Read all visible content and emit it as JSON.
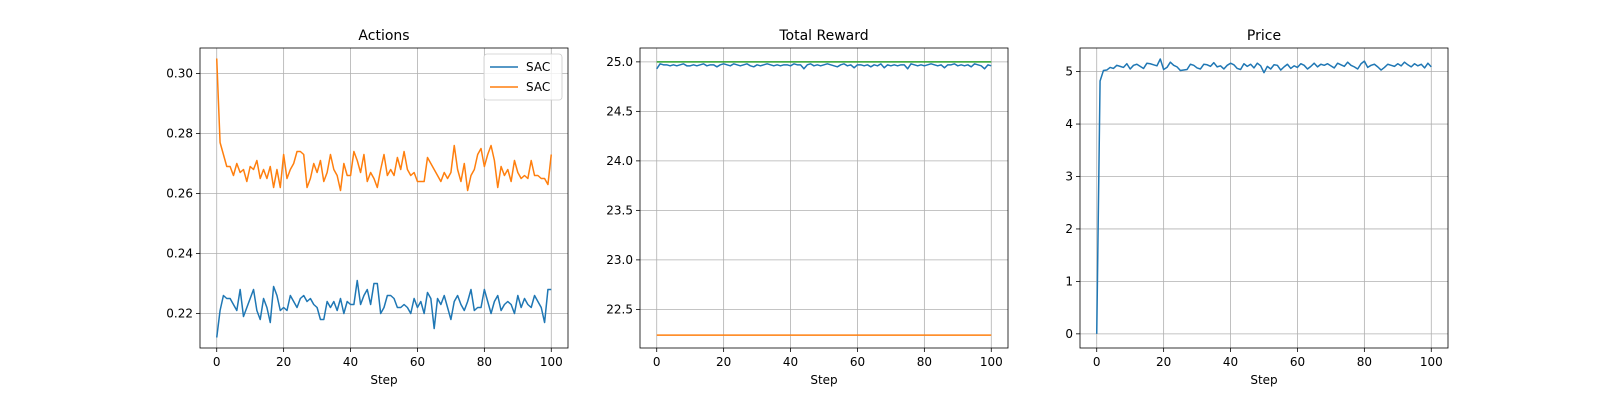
{
  "chart_data": [
    {
      "type": "line",
      "title": "Actions",
      "xlabel": "Step",
      "ylabel": "",
      "xlim": [
        -5,
        105
      ],
      "ylim": [
        0.2085,
        0.3085
      ],
      "xticks": [
        0,
        20,
        40,
        60,
        80,
        100
      ],
      "xtick_labels": [
        "0",
        "20",
        "40",
        "60",
        "80",
        "100"
      ],
      "yticks": [
        0.22,
        0.24,
        0.26,
        0.28,
        0.3
      ],
      "ytick_labels": [
        "0.22",
        "0.24",
        "0.26",
        "0.28",
        "0.30"
      ],
      "grid": true,
      "legend": "top-right",
      "series": [
        {
          "name": "SAC",
          "color": "#1f77b4",
          "values": [
            0.212,
            0.221,
            0.226,
            0.225,
            0.225,
            0.223,
            0.221,
            0.228,
            0.219,
            0.222,
            0.225,
            0.228,
            0.221,
            0.218,
            0.225,
            0.222,
            0.217,
            0.229,
            0.226,
            0.221,
            0.222,
            0.221,
            0.226,
            0.224,
            0.222,
            0.225,
            0.226,
            0.224,
            0.225,
            0.223,
            0.222,
            0.218,
            0.218,
            0.224,
            0.222,
            0.224,
            0.221,
            0.225,
            0.22,
            0.224,
            0.223,
            0.223,
            0.231,
            0.223,
            0.226,
            0.228,
            0.223,
            0.23,
            0.23,
            0.22,
            0.222,
            0.226,
            0.226,
            0.225,
            0.222,
            0.222,
            0.223,
            0.222,
            0.22,
            0.225,
            0.222,
            0.224,
            0.22,
            0.227,
            0.225,
            0.215,
            0.225,
            0.223,
            0.226,
            0.222,
            0.218,
            0.224,
            0.226,
            0.223,
            0.221,
            0.224,
            0.228,
            0.221,
            0.222,
            0.222,
            0.228,
            0.224,
            0.22,
            0.224,
            0.226,
            0.221,
            0.223,
            0.224,
            0.223,
            0.22,
            0.226,
            0.222,
            0.225,
            0.223,
            0.222,
            0.226,
            0.224,
            0.222,
            0.217,
            0.228,
            0.228
          ],
          "note": "step values 0..100"
        },
        {
          "name": "SAC",
          "color": "#ff7f0e",
          "values": [
            0.305,
            0.277,
            0.273,
            0.269,
            0.269,
            0.266,
            0.27,
            0.267,
            0.268,
            0.264,
            0.269,
            0.268,
            0.271,
            0.265,
            0.268,
            0.265,
            0.269,
            0.262,
            0.268,
            0.262,
            0.273,
            0.265,
            0.268,
            0.27,
            0.274,
            0.274,
            0.273,
            0.262,
            0.265,
            0.27,
            0.267,
            0.271,
            0.264,
            0.267,
            0.273,
            0.268,
            0.266,
            0.261,
            0.27,
            0.266,
            0.266,
            0.274,
            0.271,
            0.267,
            0.273,
            0.264,
            0.267,
            0.265,
            0.262,
            0.268,
            0.273,
            0.266,
            0.268,
            0.266,
            0.272,
            0.268,
            0.274,
            0.268,
            0.266,
            0.267,
            0.264,
            0.264,
            0.264,
            0.272,
            0.27,
            0.268,
            0.266,
            0.264,
            0.267,
            0.265,
            0.267,
            0.276,
            0.268,
            0.264,
            0.27,
            0.261,
            0.266,
            0.268,
            0.273,
            0.275,
            0.269,
            0.273,
            0.276,
            0.271,
            0.262,
            0.269,
            0.266,
            0.268,
            0.264,
            0.271,
            0.267,
            0.265,
            0.266,
            0.265,
            0.271,
            0.266,
            0.266,
            0.265,
            0.265,
            0.263,
            0.273
          ]
        }
      ]
    },
    {
      "type": "line",
      "title": "Total Reward",
      "xlabel": "Step",
      "ylabel": "",
      "xlim": [
        -5,
        105
      ],
      "ylim": [
        22.11,
        25.14
      ],
      "xticks": [
        0,
        20,
        40,
        60,
        80,
        100
      ],
      "xtick_labels": [
        "0",
        "20",
        "40",
        "60",
        "80",
        "100"
      ],
      "yticks": [
        22.5,
        23.0,
        23.5,
        24.0,
        24.5,
        25.0
      ],
      "ytick_labels": [
        "22.5",
        "23.0",
        "23.5",
        "24.0",
        "24.5",
        "25.0"
      ],
      "grid": true,
      "legend": "",
      "series": [
        {
          "color": "#1f77b4",
          "values": [
            24.93,
            24.98,
            24.97,
            24.97,
            24.96,
            24.97,
            24.96,
            24.97,
            24.98,
            24.96,
            24.96,
            24.97,
            24.96,
            24.97,
            24.98,
            24.96,
            24.97,
            24.97,
            24.95,
            24.97,
            24.98,
            24.97,
            24.96,
            24.98,
            24.97,
            24.96,
            24.97,
            24.98,
            24.96,
            24.95,
            24.97,
            24.96,
            24.97,
            24.98,
            24.97,
            24.96,
            24.97,
            24.96,
            24.97,
            24.97,
            24.96,
            24.98,
            24.97,
            24.97,
            24.93,
            24.97,
            24.98,
            24.96,
            24.97,
            24.96,
            24.97,
            24.98,
            24.97,
            24.96,
            24.95,
            24.97,
            24.98,
            24.96,
            24.97,
            24.94,
            24.97,
            24.97,
            24.96,
            24.97,
            24.95,
            24.97,
            24.96,
            24.98,
            24.94,
            24.97,
            24.96,
            24.97,
            24.96,
            24.97,
            24.97,
            24.93,
            24.98,
            24.97,
            24.96,
            24.97,
            24.96,
            24.97,
            24.98,
            24.97,
            24.96,
            24.97,
            24.94,
            24.97,
            24.97,
            24.98,
            24.96,
            24.97,
            24.96,
            24.97,
            24.95,
            24.98,
            24.97,
            24.96,
            24.93,
            24.97,
            24.96
          ]
        },
        {
          "color": "#ff7f0e",
          "values": [
            22.24,
            22.24
          ]
        },
        {
          "color": "#2ca02c",
          "values": [
            25.0,
            25.0
          ]
        }
      ]
    },
    {
      "type": "line",
      "title": "Price",
      "xlabel": "Step",
      "ylabel": "",
      "xlim": [
        -5,
        105
      ],
      "ylim": [
        -0.27,
        5.45
      ],
      "xticks": [
        0,
        20,
        40,
        60,
        80,
        100
      ],
      "xtick_labels": [
        "0",
        "20",
        "40",
        "60",
        "80",
        "100"
      ],
      "yticks": [
        0,
        1,
        2,
        3,
        4,
        5
      ],
      "ytick_labels": [
        "0",
        "1",
        "2",
        "3",
        "4",
        "5"
      ],
      "grid": true,
      "legend": "",
      "series": [
        {
          "color": "#1f77b4",
          "values": [
            0.0,
            4.82,
            5.02,
            5.03,
            5.08,
            5.06,
            5.12,
            5.1,
            5.08,
            5.15,
            5.05,
            5.12,
            5.14,
            5.1,
            5.06,
            5.16,
            5.15,
            5.13,
            5.11,
            5.24,
            5.04,
            5.08,
            5.18,
            5.12,
            5.09,
            5.02,
            5.03,
            5.04,
            5.14,
            5.12,
            5.07,
            5.05,
            5.14,
            5.13,
            5.1,
            5.17,
            5.09,
            5.11,
            5.05,
            5.12,
            5.16,
            5.13,
            5.06,
            5.04,
            5.15,
            5.1,
            5.14,
            5.07,
            5.16,
            5.11,
            4.98,
            5.1,
            5.05,
            5.13,
            5.12,
            5.03,
            5.09,
            5.14,
            5.06,
            5.11,
            5.08,
            5.15,
            5.12,
            5.05,
            5.1,
            5.16,
            5.09,
            5.14,
            5.12,
            5.15,
            5.11,
            5.07,
            5.16,
            5.13,
            5.1,
            5.18,
            5.12,
            5.09,
            5.05,
            5.15,
            5.2,
            5.08,
            5.12,
            5.14,
            5.09,
            5.03,
            5.08,
            5.14,
            5.12,
            5.1,
            5.15,
            5.11,
            5.18,
            5.13,
            5.09,
            5.15,
            5.11,
            5.14,
            5.07,
            5.16,
            5.09
          ]
        }
      ]
    }
  ]
}
